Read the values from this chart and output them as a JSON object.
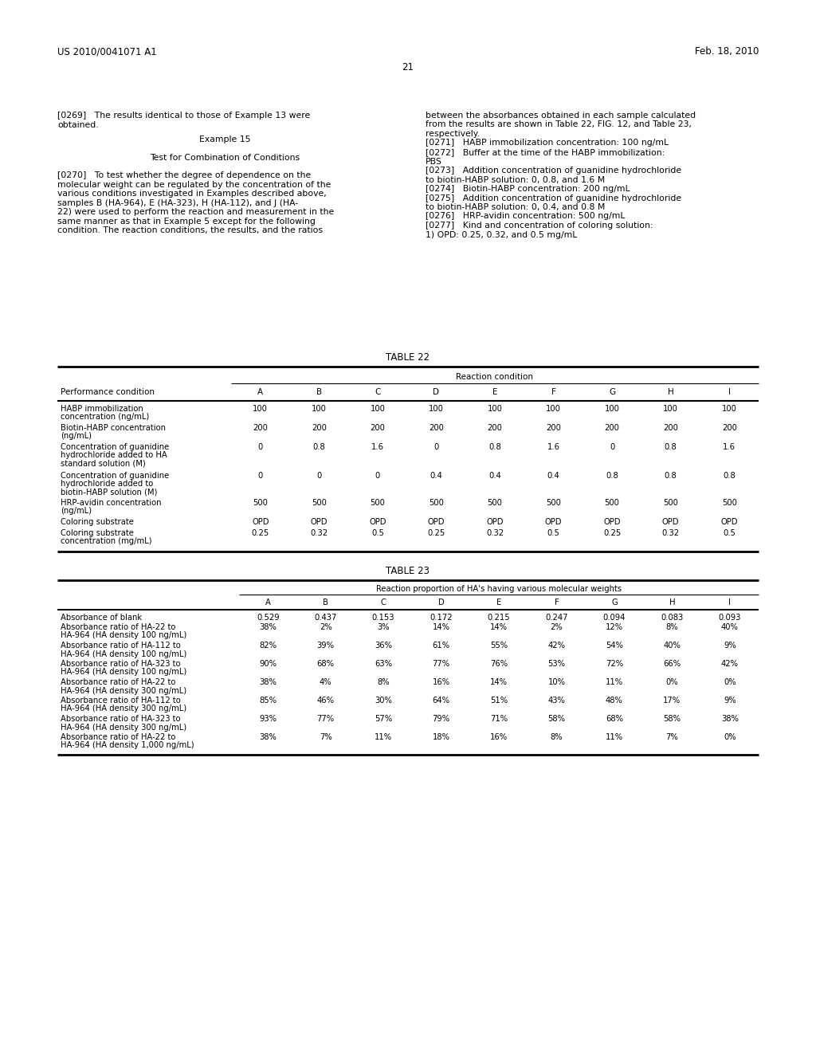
{
  "header_left": "US 2010/0041071 A1",
  "header_right": "Feb. 18, 2010",
  "page_num": "21",
  "table22_title": "TABLE 22",
  "table22_subheader": "Reaction condition",
  "table22_cols": [
    "Performance condition",
    "A",
    "B",
    "C",
    "D",
    "E",
    "F",
    "G",
    "H",
    "I"
  ],
  "table22_rows": [
    [
      "HABP immobilization\nconcentration (ng/mL)",
      "100",
      "100",
      "100",
      "100",
      "100",
      "100",
      "100",
      "100",
      "100"
    ],
    [
      "Biotin-HABP concentration\n(ng/mL)",
      "200",
      "200",
      "200",
      "200",
      "200",
      "200",
      "200",
      "200",
      "200"
    ],
    [
      "Concentration of guanidine\nhydrochloride added to HA\nstandard solution (M)",
      "0",
      "0.8",
      "1.6",
      "0",
      "0.8",
      "1.6",
      "0",
      "0.8",
      "1.6"
    ],
    [
      "Concentration of guanidine\nhydrochloride added to\nbiotin-HABP solution (M)",
      "0",
      "0",
      "0",
      "0.4",
      "0.4",
      "0.4",
      "0.8",
      "0.8",
      "0.8"
    ],
    [
      "HRP-avidin concentration\n(ng/mL)",
      "500",
      "500",
      "500",
      "500",
      "500",
      "500",
      "500",
      "500",
      "500"
    ],
    [
      "Coloring substrate",
      "OPD",
      "OPD",
      "OPD",
      "OPD",
      "OPD",
      "OPD",
      "OPD",
      "OPD",
      "OPD"
    ],
    [
      "Coloring substrate\nconcentration (mg/mL)",
      "0.25",
      "0.32",
      "0.5",
      "0.25",
      "0.32",
      "0.5",
      "0.25",
      "0.32",
      "0.5"
    ]
  ],
  "table23_title": "TABLE 23",
  "table23_subheader": "Reaction proportion of HA's having various molecular weights",
  "table23_cols": [
    "",
    "A",
    "B",
    "C",
    "D",
    "E",
    "F",
    "G",
    "H",
    "I"
  ],
  "table23_rows": [
    [
      "Absorbance of blank",
      "0.529",
      "0.437",
      "0.153",
      "0.172",
      "0.215",
      "0.247",
      "0.094",
      "0.083",
      "0.093"
    ],
    [
      "Absorbance ratio of HA-22 to\nHA-964 (HA density 100 ng/mL)",
      "38%",
      "2%",
      "3%",
      "14%",
      "14%",
      "2%",
      "12%",
      "8%",
      "40%"
    ],
    [
      "Absorbance ratio of HA-112 to\nHA-964 (HA density 100 ng/mL)",
      "82%",
      "39%",
      "36%",
      "61%",
      "55%",
      "42%",
      "54%",
      "40%",
      "9%"
    ],
    [
      "Absorbance ratio of HA-323 to\nHA-964 (HA density 100 ng/mL)",
      "90%",
      "68%",
      "63%",
      "77%",
      "76%",
      "53%",
      "72%",
      "66%",
      "42%"
    ],
    [
      "Absorbance ratio of HA-22 to\nHA-964 (HA density 300 ng/mL)",
      "38%",
      "4%",
      "8%",
      "16%",
      "14%",
      "10%",
      "11%",
      "0%",
      "0%"
    ],
    [
      "Absorbance ratio of HA-112 to\nHA-964 (HA density 300 ng/mL)",
      "85%",
      "46%",
      "30%",
      "64%",
      "51%",
      "43%",
      "48%",
      "17%",
      "9%"
    ],
    [
      "Absorbance ratio of HA-323 to\nHA-964 (HA density 300 ng/mL)",
      "93%",
      "77%",
      "57%",
      "79%",
      "71%",
      "58%",
      "68%",
      "58%",
      "38%"
    ],
    [
      "Absorbance ratio of HA-22 to\nHA-964 (HA density 1,000 ng/mL)",
      "38%",
      "7%",
      "11%",
      "18%",
      "16%",
      "8%",
      "11%",
      "7%",
      "0%"
    ]
  ],
  "bg_color": "#ffffff",
  "text_color": "#000000"
}
